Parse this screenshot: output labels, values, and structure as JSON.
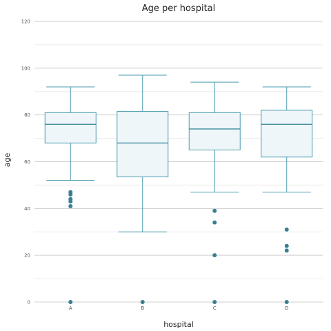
{
  "chart_data": {
    "type": "box",
    "title": "Age per hospital",
    "xlabel": "hospital",
    "ylabel": "age",
    "ylim": [
      0,
      120
    ],
    "yticks": [
      0,
      20,
      40,
      60,
      80,
      100,
      120
    ],
    "grid": true,
    "categories": [
      "A",
      "B",
      "C",
      "D"
    ],
    "boxes": [
      {
        "category": "A",
        "whisker_low": 52,
        "q1": 68,
        "median": 76,
        "q3": 81,
        "whisker_high": 92,
        "outliers": [
          47,
          46,
          44,
          43,
          41,
          0
        ]
      },
      {
        "category": "B",
        "whisker_low": 30,
        "q1": 53.5,
        "median": 68,
        "q3": 81.5,
        "whisker_high": 97,
        "outliers": [
          0
        ]
      },
      {
        "category": "C",
        "whisker_low": 47,
        "q1": 65,
        "median": 74,
        "q3": 81,
        "whisker_high": 94,
        "outliers": [
          39,
          34,
          20,
          0
        ]
      },
      {
        "category": "D",
        "whisker_low": 47,
        "q1": 62,
        "median": 76,
        "q3": 82,
        "whisker_high": 92,
        "outliers": [
          31,
          24,
          22,
          0
        ]
      }
    ],
    "colors": {
      "box_stroke": "#4a9aae",
      "box_fill": "#eef6f9",
      "median": "#2f7f94",
      "outlier": "#3a7f93",
      "grid_major": "#cfcfcf",
      "grid_minor": "#ebebeb"
    }
  }
}
